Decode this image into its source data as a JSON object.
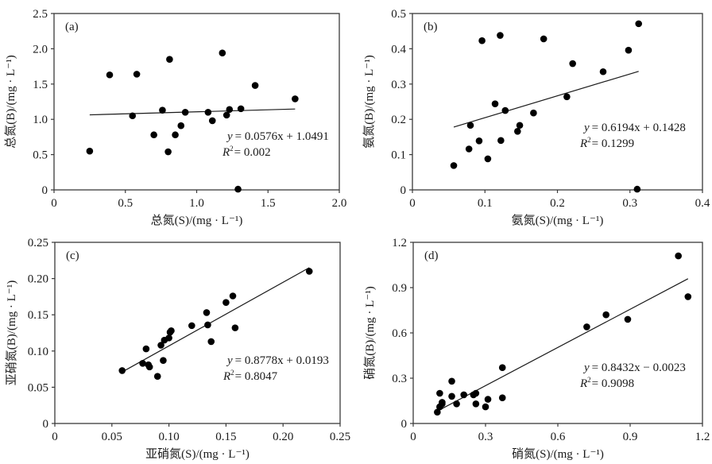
{
  "chart_data": [
    {
      "id": "a",
      "type": "scatter",
      "panel_label": "(a)",
      "xlabel": "总氮(S)/(mg · L⁻¹)",
      "ylabel": "总氮(B)/(mg · L⁻¹)",
      "xlim": [
        0,
        2.0
      ],
      "ylim": [
        0,
        2.5
      ],
      "xticks": [
        0,
        0.5,
        1.0,
        1.5,
        2.0
      ],
      "xtick_labels": [
        "0",
        "0.5",
        "1.0",
        "1.5",
        "2.0"
      ],
      "yticks": [
        0,
        0.5,
        1.0,
        1.5,
        2.0,
        2.5
      ],
      "ytick_labels": [
        "0",
        "0.5",
        "1.0",
        "1.5",
        "2.0",
        "2.5"
      ],
      "grid": false,
      "points": [
        [
          0.25,
          0.55
        ],
        [
          0.39,
          1.63
        ],
        [
          0.55,
          1.05
        ],
        [
          0.58,
          1.64
        ],
        [
          0.7,
          0.78
        ],
        [
          0.76,
          1.13
        ],
        [
          0.8,
          0.54
        ],
        [
          0.81,
          1.85
        ],
        [
          0.85,
          0.78
        ],
        [
          0.89,
          0.91
        ],
        [
          0.92,
          1.1
        ],
        [
          1.08,
          1.1
        ],
        [
          1.11,
          0.98
        ],
        [
          1.18,
          1.94
        ],
        [
          1.21,
          1.06
        ],
        [
          1.23,
          1.14
        ],
        [
          1.29,
          0.01
        ],
        [
          1.31,
          1.15
        ],
        [
          1.41,
          1.48
        ],
        [
          1.69,
          1.29
        ]
      ],
      "trendline": {
        "slope": 0.0576,
        "intercept": 1.0491,
        "x_range": [
          0.25,
          1.69
        ]
      },
      "equation": "= 0.0576x + 1.0491",
      "equation_y": "y",
      "r2_label": "R",
      "r2_text": "= 0.002"
    },
    {
      "id": "b",
      "type": "scatter",
      "panel_label": "(b)",
      "xlabel": "氨氮(S)/(mg · L⁻¹)",
      "ylabel": "氨氮(B)/(mg · L⁻¹)",
      "xlim": [
        0,
        0.4
      ],
      "ylim": [
        0,
        0.5
      ],
      "xticks": [
        0,
        0.1,
        0.2,
        0.3,
        0.4
      ],
      "xtick_labels": [
        "0",
        "0.1",
        "0.2",
        "0.3",
        "0.4"
      ],
      "yticks": [
        0,
        0.1,
        0.2,
        0.3,
        0.4,
        0.5
      ],
      "ytick_labels": [
        "0",
        "0.1",
        "0.2",
        "0.3",
        "0.4",
        "0.5"
      ],
      "grid": false,
      "points": [
        [
          0.057,
          0.069
        ],
        [
          0.078,
          0.116
        ],
        [
          0.08,
          0.183
        ],
        [
          0.092,
          0.139
        ],
        [
          0.096,
          0.423
        ],
        [
          0.104,
          0.088
        ],
        [
          0.114,
          0.244
        ],
        [
          0.121,
          0.438
        ],
        [
          0.122,
          0.14
        ],
        [
          0.128,
          0.225
        ],
        [
          0.145,
          0.166
        ],
        [
          0.148,
          0.183
        ],
        [
          0.167,
          0.218
        ],
        [
          0.181,
          0.428
        ],
        [
          0.213,
          0.264
        ],
        [
          0.221,
          0.358
        ],
        [
          0.263,
          0.335
        ],
        [
          0.298,
          0.396
        ],
        [
          0.31,
          0.002
        ],
        [
          0.312,
          0.471
        ]
      ],
      "trendline": {
        "slope": 0.6194,
        "intercept": 0.1428,
        "x_range": [
          0.057,
          0.312
        ]
      },
      "equation": "= 0.6194x + 0.1428",
      "equation_y": "y",
      "r2_label": "R",
      "r2_text": "= 0.1299"
    },
    {
      "id": "c",
      "type": "scatter",
      "panel_label": "(c)",
      "xlabel": "亚硝氮(S)/(mg · L⁻¹)",
      "ylabel": "亚硝氮(B)/(mg · L⁻¹)",
      "xlim": [
        0,
        0.25
      ],
      "ylim": [
        0,
        0.25
      ],
      "xticks": [
        0,
        0.05,
        0.1,
        0.15,
        0.2,
        0.25
      ],
      "xtick_labels": [
        "0",
        "0.05",
        "0.10",
        "0.15",
        "0.20",
        "0.25"
      ],
      "yticks": [
        0,
        0.05,
        0.1,
        0.15,
        0.2,
        0.25
      ],
      "ytick_labels": [
        "0",
        "0.05",
        "0.10",
        "0.15",
        "0.20",
        "0.25"
      ],
      "grid": false,
      "points": [
        [
          0.059,
          0.073
        ],
        [
          0.077,
          0.083
        ],
        [
          0.08,
          0.103
        ],
        [
          0.082,
          0.081
        ],
        [
          0.083,
          0.078
        ],
        [
          0.09,
          0.065
        ],
        [
          0.093,
          0.108
        ],
        [
          0.095,
          0.087
        ],
        [
          0.096,
          0.115
        ],
        [
          0.1,
          0.118
        ],
        [
          0.101,
          0.126
        ],
        [
          0.102,
          0.128
        ],
        [
          0.12,
          0.135
        ],
        [
          0.133,
          0.153
        ],
        [
          0.134,
          0.136
        ],
        [
          0.137,
          0.113
        ],
        [
          0.15,
          0.167
        ],
        [
          0.156,
          0.176
        ],
        [
          0.158,
          0.132
        ],
        [
          0.223,
          0.21
        ]
      ],
      "trendline": {
        "slope": 0.8778,
        "intercept": 0.0193,
        "x_range": [
          0.059,
          0.223
        ]
      },
      "equation": "= 0.8778x + 0.0193",
      "equation_y": "y",
      "r2_label": "R",
      "r2_text": "= 0.8047"
    },
    {
      "id": "d",
      "type": "scatter",
      "panel_label": "(d)",
      "xlabel": "硝氮(S)/(mg · L⁻¹)",
      "ylabel": "硝氮(B)/(mg · L⁻¹)",
      "xlim": [
        0,
        1.2
      ],
      "ylim": [
        0,
        1.2
      ],
      "xticks": [
        0,
        0.3,
        0.6,
        0.9,
        1.2
      ],
      "xtick_labels": [
        "0",
        "0.3",
        "0.6",
        "0.9",
        "1.2"
      ],
      "yticks": [
        0,
        0.3,
        0.6,
        0.9,
        1.2
      ],
      "ytick_labels": [
        "0",
        "0.3",
        "0.6",
        "0.9",
        "1.2"
      ],
      "grid": false,
      "points": [
        [
          0.1,
          0.075
        ],
        [
          0.11,
          0.2
        ],
        [
          0.11,
          0.11
        ],
        [
          0.12,
          0.13
        ],
        [
          0.12,
          0.14
        ],
        [
          0.16,
          0.18
        ],
        [
          0.16,
          0.28
        ],
        [
          0.18,
          0.13
        ],
        [
          0.21,
          0.19
        ],
        [
          0.25,
          0.19
        ],
        [
          0.26,
          0.2
        ],
        [
          0.26,
          0.13
        ],
        [
          0.3,
          0.11
        ],
        [
          0.31,
          0.16
        ],
        [
          0.37,
          0.17
        ],
        [
          0.37,
          0.37
        ],
        [
          0.72,
          0.64
        ],
        [
          0.8,
          0.72
        ],
        [
          0.89,
          0.69
        ],
        [
          1.1,
          1.11
        ],
        [
          1.14,
          0.84
        ]
      ],
      "trendline": {
        "slope": 0.8432,
        "intercept": -0.0023,
        "x_range": [
          0.1,
          1.14
        ]
      },
      "equation": "= 0.8432x − 0.0023",
      "equation_y": "y",
      "r2_label": "R",
      "r2_text": "= 0.9098"
    }
  ]
}
